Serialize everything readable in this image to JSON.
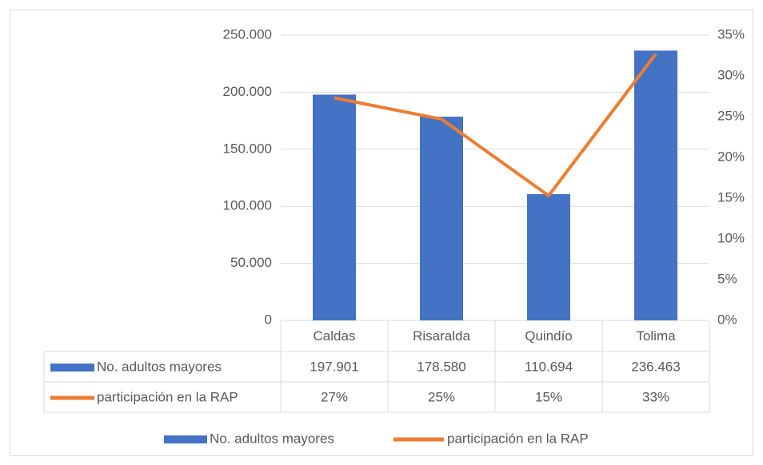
{
  "chart_data": {
    "type": "bar_line",
    "categories": [
      "Caldas",
      "Risaralda",
      "Quindío",
      "Tolima"
    ],
    "series": [
      {
        "name": "No. adultos mayores",
        "color": "#4472c4",
        "type": "bar",
        "values": [
          197901,
          178580,
          110694,
          236463
        ],
        "value_labels": [
          "197.901",
          "178.580",
          "110.694",
          "236.463"
        ]
      },
      {
        "name": "participación en la RAP",
        "color": "#ed7d31",
        "type": "line",
        "axis": "y2",
        "values": [
          27.3,
          24.7,
          15.3,
          32.7
        ],
        "value_labels": [
          "27%",
          "25%",
          "15%",
          "33%"
        ]
      }
    ],
    "ylim": [
      0,
      250000
    ],
    "yticks": [
      0,
      {
        "value": 50000,
        "label": "50.000"
      },
      {
        "value": 100000,
        "label": "100.000"
      },
      {
        "value": 150000,
        "label": "150.000"
      },
      {
        "value": 200000,
        "label": "200.000"
      },
      {
        "value": 250000,
        "label": "250.000"
      }
    ],
    "y2lim": [
      0,
      35
    ],
    "y2ticks": [
      {
        "value": 0,
        "label": "0%"
      },
      {
        "value": 5,
        "label": "5%"
      },
      {
        "value": 10,
        "label": "10%"
      },
      {
        "value": 15,
        "label": "15%"
      },
      {
        "value": 20,
        "label": "20%"
      },
      {
        "value": 25,
        "label": "25%"
      },
      {
        "value": 30,
        "label": "30%"
      },
      {
        "value": 35,
        "label": "35%"
      }
    ],
    "grid": true,
    "data_table": true,
    "legend": "bottom"
  }
}
